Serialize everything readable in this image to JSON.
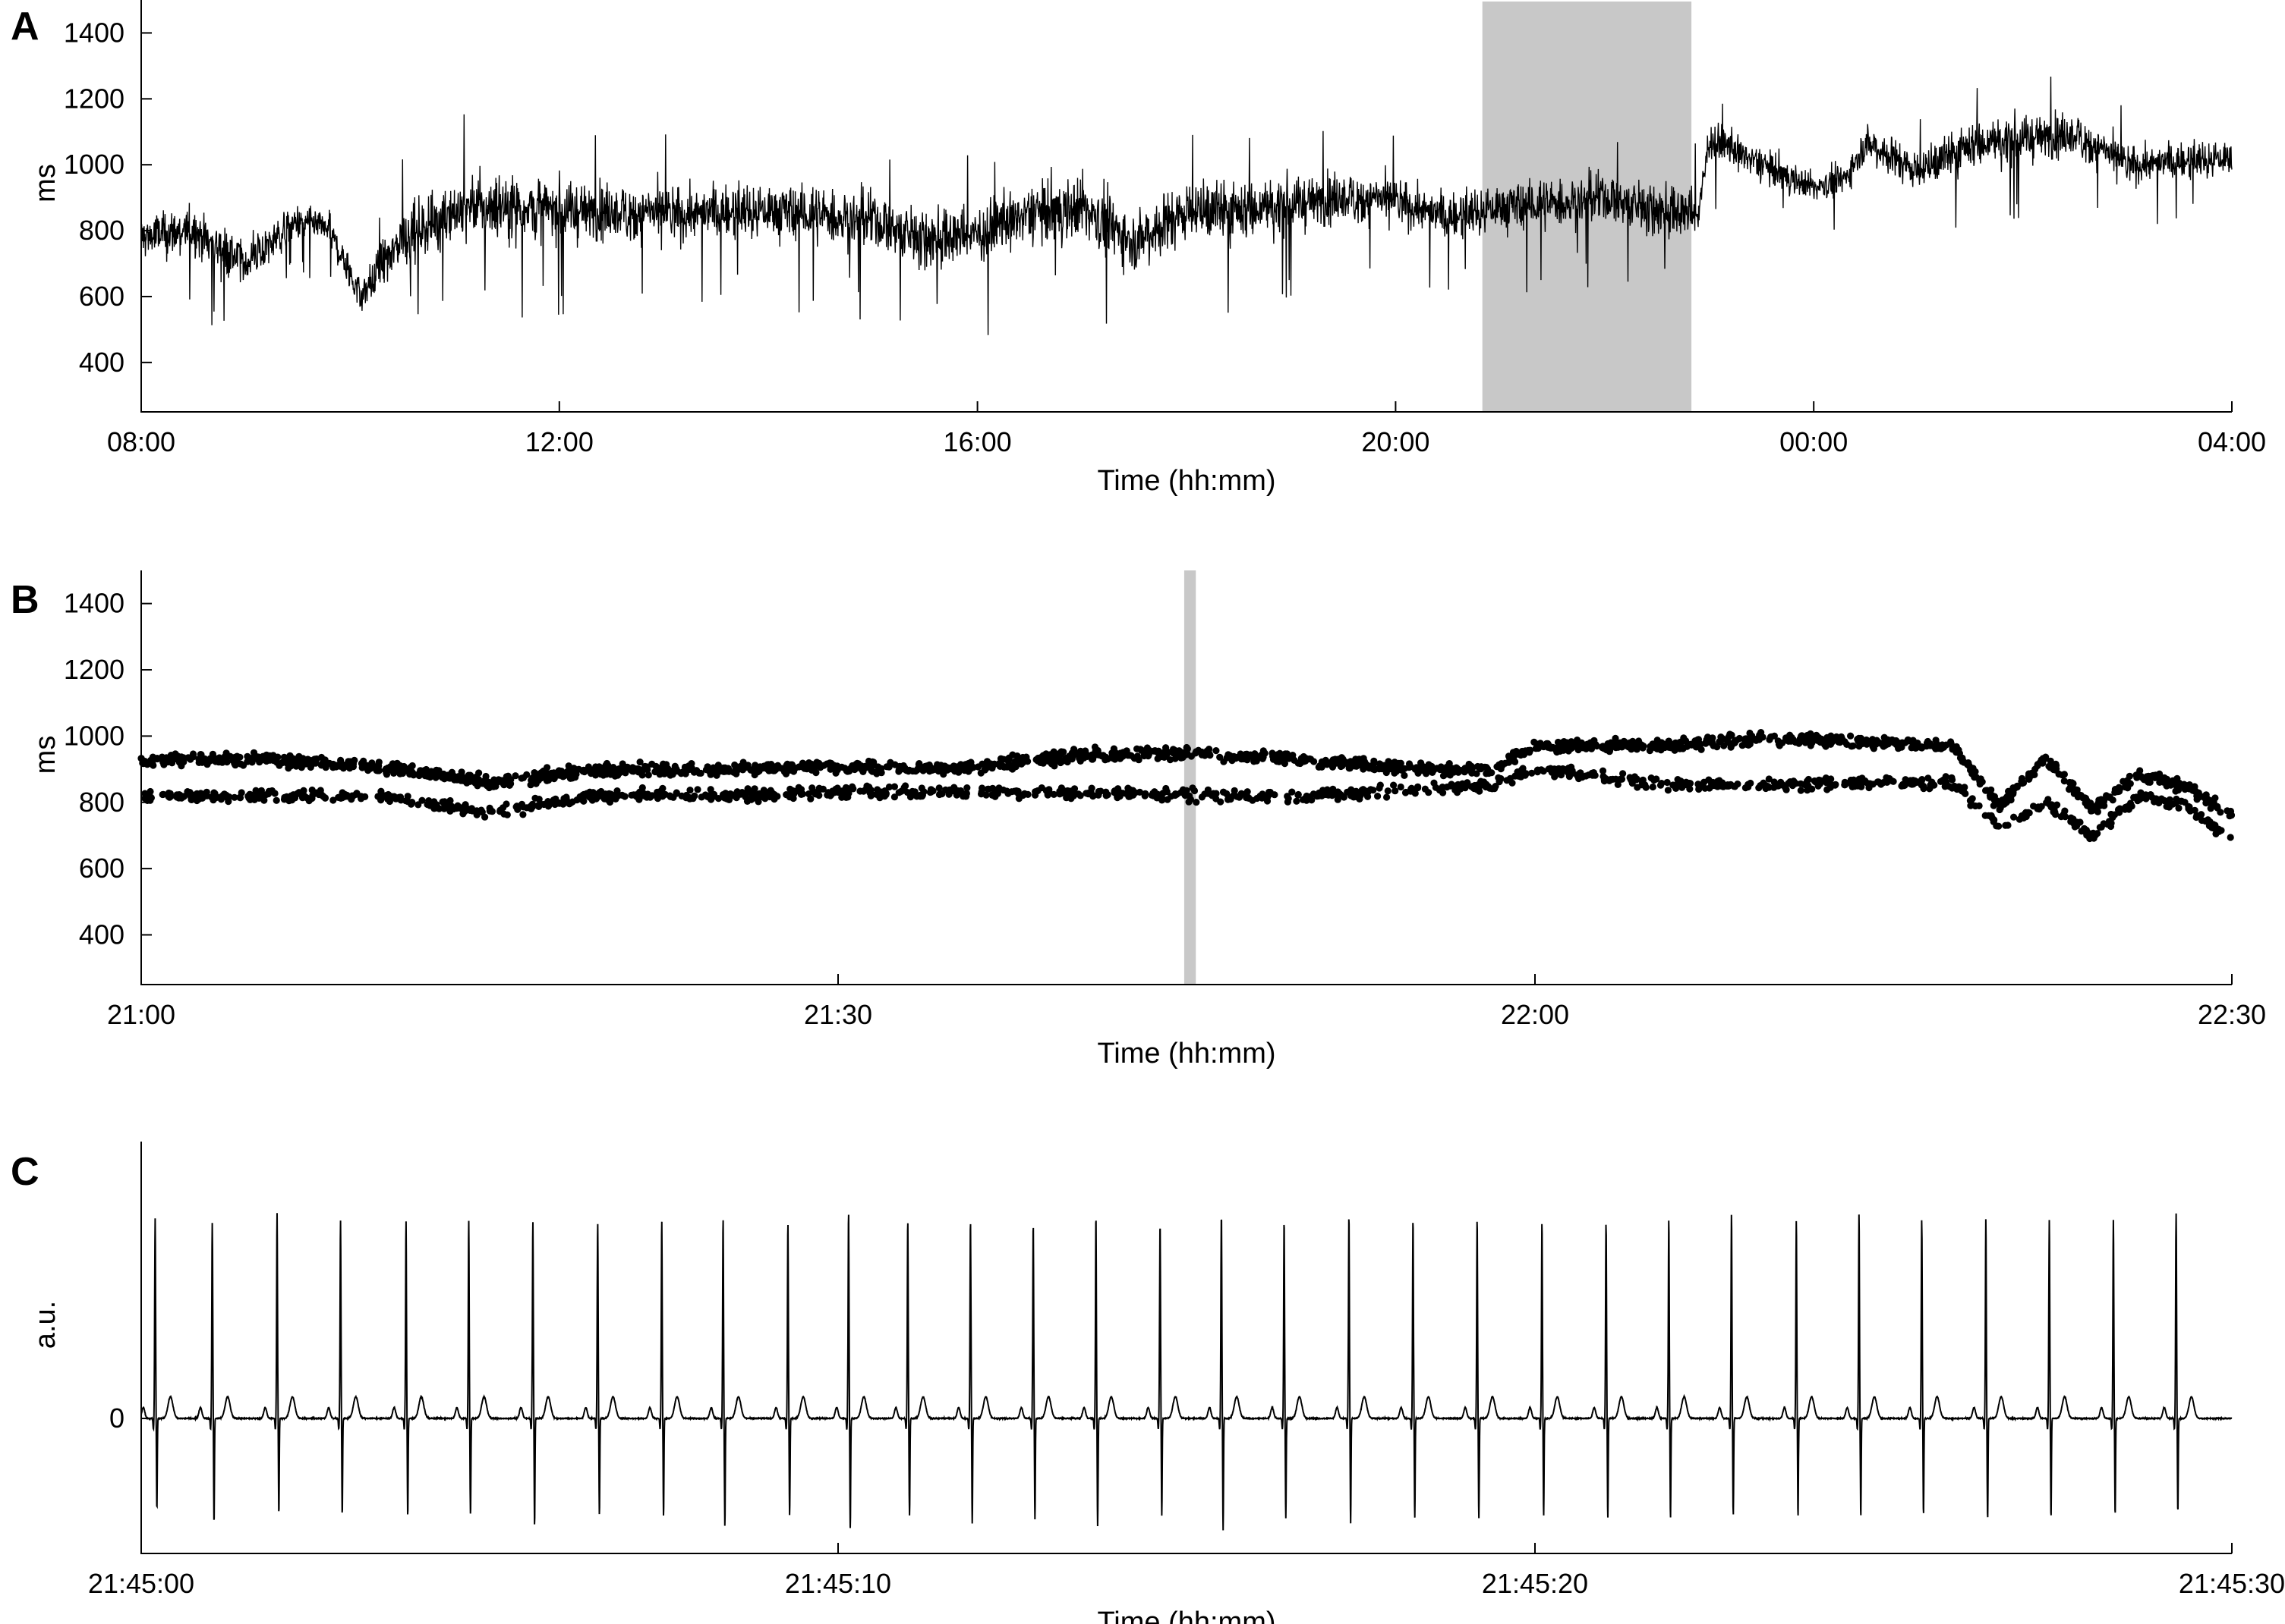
{
  "colors": {
    "ink": "#000000",
    "highlight": "#c8c8c8",
    "background": "#ffffff"
  },
  "chart_data": [
    {
      "panel": "A",
      "type": "line",
      "xlabel": "Time (hh:mm)",
      "ylabel": "ms",
      "xlim_hours": [
        8,
        28
      ],
      "ylim": [
        250,
        1500
      ],
      "x_ticks": [
        {
          "value": 8,
          "label": "08:00"
        },
        {
          "value": 12,
          "label": "12:00"
        },
        {
          "value": 16,
          "label": "16:00"
        },
        {
          "value": 20,
          "label": "20:00"
        },
        {
          "value": 24,
          "label": "00:00"
        },
        {
          "value": 28,
          "label": "04:00"
        }
      ],
      "y_ticks": [
        400,
        600,
        800,
        1000,
        1200,
        1400
      ],
      "highlight_hours": [
        20.83,
        22.83
      ],
      "series": {
        "x_hours": [
          8.0,
          8.5,
          9.0,
          9.5,
          9.8,
          10.1,
          10.5,
          11.0,
          11.5,
          12.0,
          13.0,
          14.0,
          15.0,
          15.5,
          16.0,
          16.5,
          17.0,
          17.5,
          18.0,
          18.5,
          19.0,
          19.5,
          20.0,
          20.5,
          21.0,
          21.5,
          22.0,
          22.5,
          22.9,
          23.0,
          23.5,
          24.0,
          24.3,
          24.5,
          25.0,
          25.5,
          26.0,
          26.5,
          27.0,
          27.5,
          28.0
        ],
        "center_ms": [
          780,
          800,
          700,
          830,
          800,
          600,
          780,
          860,
          880,
          860,
          850,
          860,
          830,
          770,
          790,
          850,
          870,
          770,
          860,
          860,
          880,
          900,
          890,
          840,
          870,
          880,
          900,
          860,
          850,
          1080,
          1000,
          930,
          960,
          1070,
          980,
          1060,
          1080,
          1090,
          1000,
          1010,
          1020
        ],
        "half_range_ms": [
          140,
          140,
          130,
          90,
          90,
          110,
          150,
          180,
          200,
          170,
          160,
          160,
          160,
          170,
          170,
          170,
          180,
          180,
          180,
          170,
          150,
          150,
          130,
          140,
          140,
          140,
          140,
          150,
          150,
          110,
          100,
          80,
          90,
          110,
          120,
          130,
          130,
          130,
          110,
          110,
          110
        ]
      }
    },
    {
      "panel": "B",
      "type": "scatter",
      "xlabel": "Time (hh:mm)",
      "ylabel": "ms",
      "xlim_minutes": [
        0,
        90
      ],
      "ylim": [
        250,
        1500
      ],
      "x_ticks": [
        {
          "value": 0,
          "label": "21:00"
        },
        {
          "value": 30,
          "label": "21:30"
        },
        {
          "value": 60,
          "label": "22:00"
        },
        {
          "value": 90,
          "label": "22:30"
        }
      ],
      "y_ticks": [
        400,
        600,
        800,
        1000,
        1200,
        1400
      ],
      "highlight_minutes": [
        44.9,
        45.4
      ],
      "series": {
        "x_minutes": [
          0,
          5,
          10,
          15,
          20,
          25,
          30,
          35,
          40,
          45,
          50,
          55,
          58,
          60,
          65,
          70,
          75,
          78,
          80,
          82,
          84,
          86,
          88,
          90
        ],
        "upper_ms": [
          930,
          930,
          910,
          860,
          900,
          900,
          910,
          900,
          940,
          950,
          930,
          900,
          900,
          970,
          970,
          990,
          980,
          970,
          790,
          930,
          780,
          880,
          850,
          760
        ],
        "lower_ms": [
          820,
          820,
          820,
          770,
          820,
          820,
          830,
          830,
          830,
          820,
          820,
          840,
          850,
          900,
          860,
          850,
          860,
          860,
          730,
          800,
          700,
          820,
          790,
          690
        ]
      }
    },
    {
      "panel": "C",
      "type": "line",
      "xlabel": "Time (hh:mm)",
      "ylabel": "a.u.",
      "xlim_seconds": [
        0,
        30
      ],
      "ylim": [
        -1.0,
        2.05
      ],
      "x_ticks": [
        {
          "value": 0,
          "label": "21:45:00"
        },
        {
          "value": 10,
          "label": "21:45:10"
        },
        {
          "value": 20,
          "label": "21:45:20"
        },
        {
          "value": 30,
          "label": "21:45:30"
        }
      ],
      "y_ticks": [
        {
          "value": 0,
          "label": "0"
        }
      ],
      "beat_times_s": [
        0.2,
        1.02,
        1.95,
        2.86,
        3.8,
        4.7,
        5.62,
        6.55,
        7.47,
        8.35,
        9.28,
        10.15,
        11.0,
        11.9,
        12.8,
        13.7,
        14.62,
        15.5,
        16.4,
        17.33,
        18.25,
        19.17,
        20.1,
        21.02,
        21.92,
        22.82,
        23.75,
        24.65,
        25.55,
        26.47,
        27.38,
        28.3,
        29.2
      ],
      "r_peak_au": [
        1.48,
        1.45,
        1.52,
        1.47,
        1.46,
        1.47,
        1.46,
        1.45,
        1.47,
        1.48,
        1.45,
        1.53,
        1.47,
        1.47,
        1.45,
        1.51,
        1.45,
        1.52,
        1.47,
        1.51,
        1.48,
        1.48,
        1.46,
        1.45,
        1.48,
        1.52,
        1.47,
        1.52,
        1.47,
        1.48,
        1.47,
        1.47,
        1.52
      ],
      "s_trough_au": [
        -0.68,
        -0.78,
        -0.71,
        -0.72,
        -0.73,
        -0.72,
        -0.8,
        -0.72,
        -0.73,
        -0.8,
        -0.72,
        -0.82,
        -0.72,
        -0.78,
        -0.75,
        -0.8,
        -0.72,
        -0.83,
        -0.74,
        -0.78,
        -0.74,
        -0.74,
        -0.72,
        -0.74,
        -0.74,
        -0.72,
        -0.73,
        -0.73,
        -0.72,
        -0.75,
        -0.74,
        -0.72,
        -0.7
      ]
    }
  ]
}
